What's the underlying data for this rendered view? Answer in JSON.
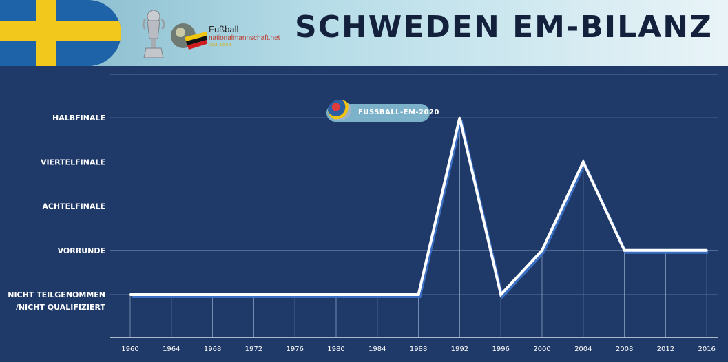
{
  "header": {
    "title": "SCHWEDEN EM-BILANZ",
    "brand_line1": "Fußball",
    "brand_line2": "nationalmannschaft.net",
    "brand_line3": "seit 1908"
  },
  "watermark": {
    "text": "FUSSBALL-EM-2020"
  },
  "colors": {
    "background": "#1f3a68",
    "line": "#ffffff",
    "line_shadow": "#3a6fc4",
    "grid": "#6f86ad",
    "flag_blue": "#1e63a8",
    "flag_yellow": "#f3c81d",
    "title": "#14213d"
  },
  "chart_data": {
    "type": "line",
    "title": "SCHWEDEN EM-BILANZ",
    "categories": [
      "1960",
      "1964",
      "1968",
      "1972",
      "1976",
      "1980",
      "1984",
      "1988",
      "1992",
      "1996",
      "2000",
      "2004",
      "2008",
      "2012",
      "2016"
    ],
    "y_levels": [
      "NICHT TEILGENOMMEN /NICHT QUALIFIZIERT",
      "VORRUNDE",
      "ACHTELFINALE",
      "VIERTELFINALE",
      "HALBFINALE"
    ],
    "y_label_lines": [
      [
        "NICHT TEILGENOMMEN",
        "/NICHT QUALIFIZIERT"
      ],
      [
        "VORRUNDE"
      ],
      [
        "ACHTELFINALE"
      ],
      [
        "VIERTELFINALE"
      ],
      [
        "HALBFINALE"
      ]
    ],
    "values": [
      0,
      0,
      0,
      0,
      0,
      0,
      0,
      0,
      4,
      0,
      1,
      3,
      1,
      1,
      1
    ],
    "ylim": [
      0,
      5
    ],
    "grid": true,
    "legend": "none"
  }
}
